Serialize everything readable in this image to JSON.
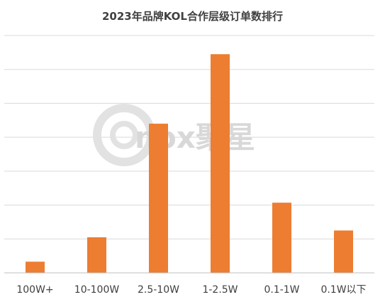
{
  "chart_data": {
    "type": "bar",
    "title": "2023年品牌KOL合作层级订单数排行",
    "categories": [
      "100W+",
      "10-100W",
      "2.5-10W",
      "1-2.5W",
      "0.1-1W",
      "0.1W以下"
    ],
    "series": [
      {
        "values": [
          3.3,
          10.5,
          44,
          64.5,
          20.7,
          12.5
        ]
      }
    ],
    "ylim": [
      0,
      70
    ],
    "grid": true,
    "legend": "none",
    "bar_color": "#ED7D31",
    "grid_color": "#d9d9d9"
  },
  "watermark": {
    "text": "nox聚星"
  }
}
